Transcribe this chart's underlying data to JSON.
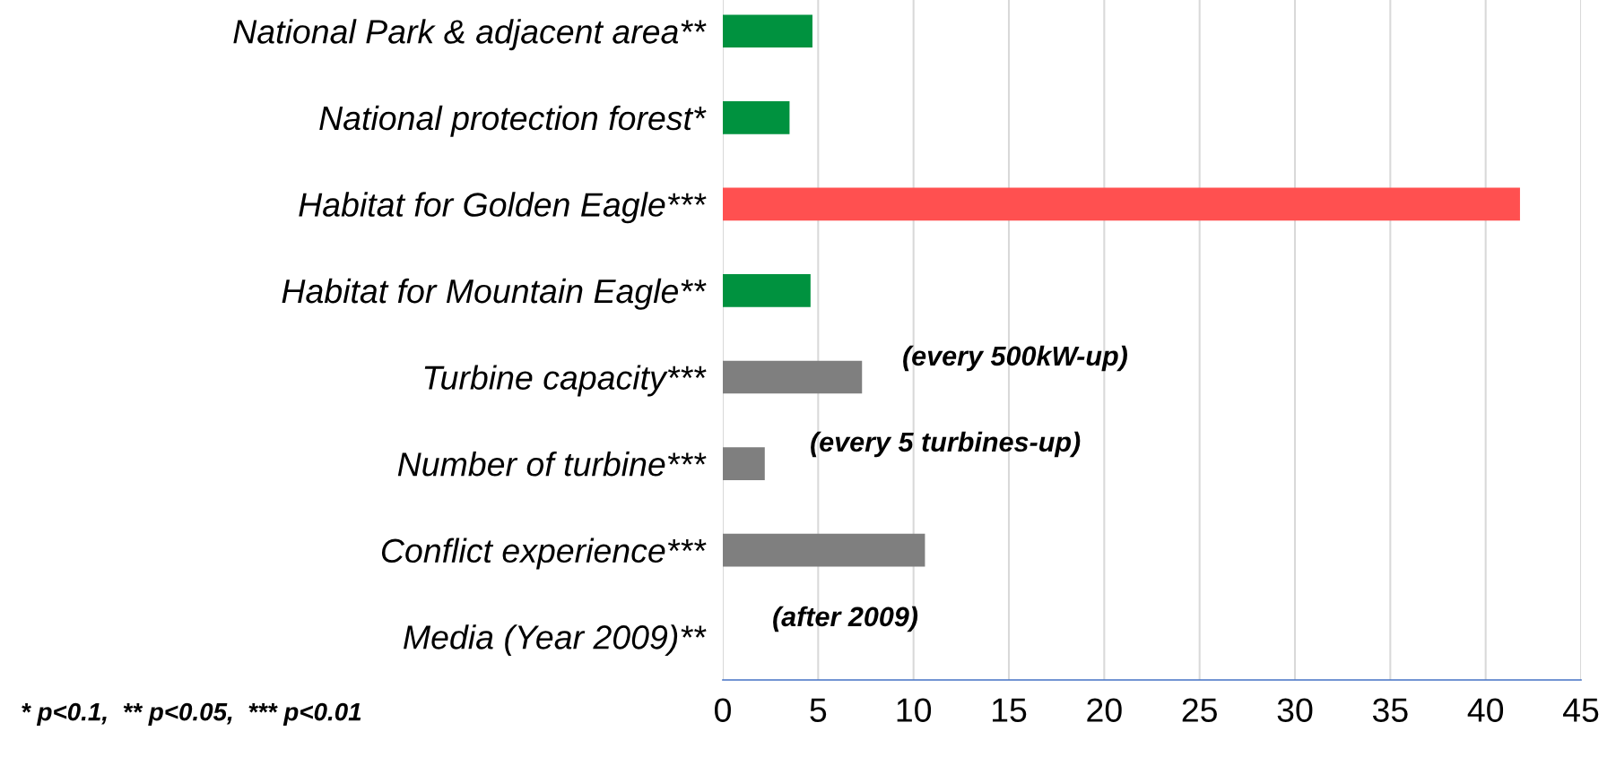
{
  "chart_data": {
    "type": "bar",
    "orientation": "horizontal",
    "categories": [
      "National Park & adjacent area**",
      "National protection forest*",
      "Habitat for Golden Eagle***",
      "Habitat for Mountain Eagle**",
      "Turbine capacity***",
      "Number of turbine***",
      "Conflict experience***",
      "Media (Year 2009)**"
    ],
    "values": [
      4.7,
      3.5,
      41.8,
      4.6,
      7.3,
      2.2,
      10.6,
      0
    ],
    "colors": [
      "#00923f",
      "#00923f",
      "#ff5050",
      "#00923f",
      "#7f7f7f",
      "#7f7f7f",
      "#7f7f7f",
      "#7f7f7f"
    ],
    "xlim": [
      0,
      45
    ],
    "xticks": [
      0,
      5,
      10,
      15,
      20,
      25,
      30,
      35,
      40,
      45
    ],
    "grid": "x",
    "annotations": [
      "(every 500kW-up)",
      "(every 5 turbines-up)",
      "(after 2009)",
      "* p<0.1,  ** p<0.05,  *** p<0.01"
    ]
  }
}
